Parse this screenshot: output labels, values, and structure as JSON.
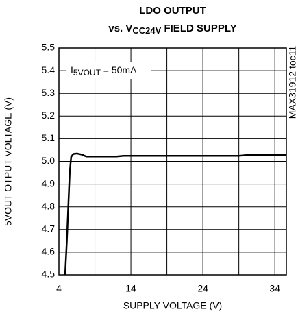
{
  "chart_data": {
    "type": "line",
    "title": "LDO OUTPUT",
    "subtitle": [
      "vs. V",
      "CC24V",
      " FIELD SUPPLY"
    ],
    "annotation": [
      "I",
      "5VOUT",
      " = 50mA"
    ],
    "side_label": "MAX31912 toc11",
    "x_label": "SUPPLY VOLTAGE (V)",
    "y_label": "5VOUT OTPUT VOLTAGE (V)",
    "xlim": [
      4,
      35.6
    ],
    "ylim": [
      4.5,
      5.5
    ],
    "xticks": [
      4,
      14,
      24,
      34
    ],
    "xminor": [
      9,
      19,
      29
    ],
    "yticks": [
      4.5,
      4.6,
      4.7,
      4.8,
      4.9,
      {
        "value": 5,
        "label": "5.0"
      },
      5.1,
      5.2,
      5.3,
      5.4,
      5.5
    ],
    "grid": true,
    "series": [
      {
        "color": "#000000",
        "x": [
          4.86,
          5.1,
          5.3,
          5.5,
          5.7,
          6.0,
          6.5,
          7.2,
          7.8,
          10,
          12,
          13,
          20,
          29,
          30,
          35.6
        ],
        "values": [
          4.5,
          4.65,
          4.8,
          4.95,
          5.02,
          5.033,
          5.035,
          5.03,
          5.022,
          5.022,
          5.022,
          5.025,
          5.025,
          5.025,
          5.028,
          5.028
        ]
      }
    ]
  }
}
